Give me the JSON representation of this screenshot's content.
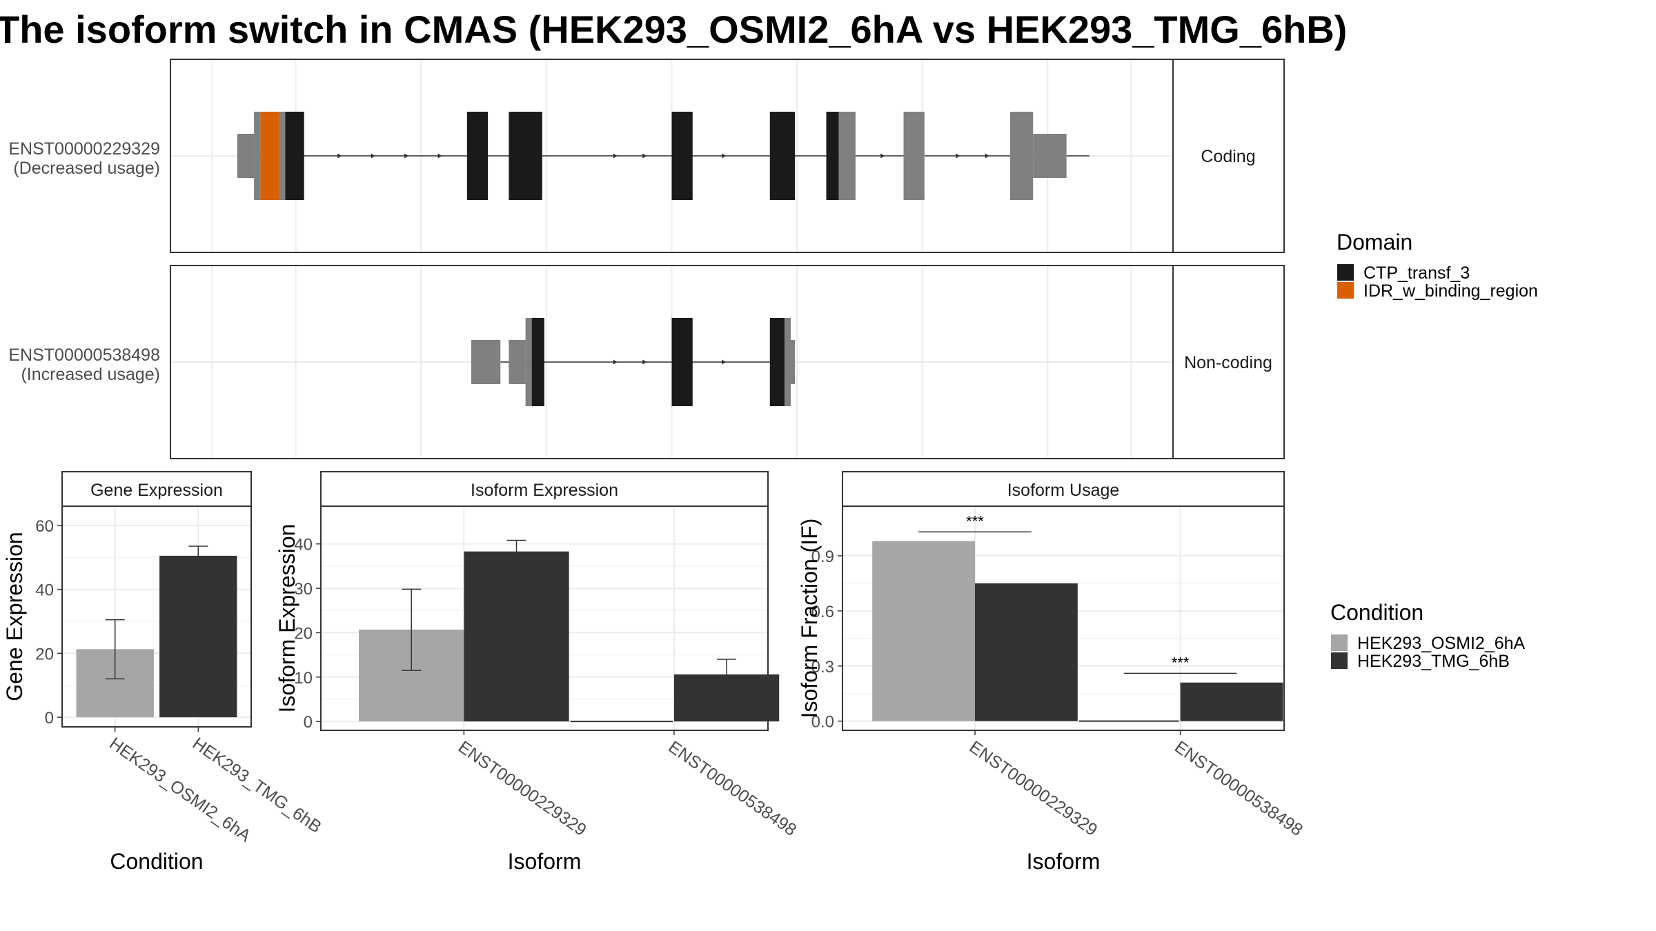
{
  "title": "The isoform switch in CMAS (HEK293_OSMI2_6hA vs HEK293_TMG_6hB)",
  "colors": {
    "domain_CTP_transf_3": "#1a1a1a",
    "domain_IDR_w_binding_region": "#d95f02",
    "utr": "#808080",
    "condition_HEK293_OSMI2_6hA": "#a6a6a6",
    "condition_HEK293_TMG_6hB": "#333333",
    "grid": "#ebebeb",
    "strip_bg": "#ffffff"
  },
  "transcripts": [
    {
      "id": "ENST00000229329",
      "usage": "(Decreased usage)",
      "strip": "Coding",
      "intron_range": [
        0.0,
        20.0
      ],
      "direction_arrows": [
        2.1,
        2.9,
        3.7,
        4.5,
        8.7,
        9.4,
        10.2,
        11.3,
        15.1,
        15.7,
        16.9,
        17.6
      ],
      "blocks": [
        {
          "start": -0.4,
          "end": 0.0,
          "part": "utr",
          "height": "half"
        },
        {
          "start": 0.0,
          "end": 0.15,
          "part": "utr",
          "height": "full"
        },
        {
          "start": 0.15,
          "end": 0.6,
          "part": "IDR_w_binding_region",
          "height": "full"
        },
        {
          "start": 0.6,
          "end": 0.75,
          "part": "utr",
          "height": "full"
        },
        {
          "start": 0.75,
          "end": 1.2,
          "part": "CTP_transf_3",
          "height": "full"
        },
        {
          "start": 5.1,
          "end": 5.6,
          "part": "CTP_transf_3",
          "height": "full"
        },
        {
          "start": 6.1,
          "end": 6.9,
          "part": "CTP_transf_3",
          "height": "full"
        },
        {
          "start": 10.0,
          "end": 10.5,
          "part": "CTP_transf_3",
          "height": "full"
        },
        {
          "start": 12.35,
          "end": 12.95,
          "part": "CTP_transf_3",
          "height": "full"
        },
        {
          "start": 13.7,
          "end": 14.0,
          "part": "CTP_transf_3",
          "height": "full"
        },
        {
          "start": 14.0,
          "end": 14.4,
          "part": "utr",
          "height": "full"
        },
        {
          "start": 15.55,
          "end": 16.05,
          "part": "utr",
          "height": "full"
        },
        {
          "start": 18.1,
          "end": 18.65,
          "part": "utr",
          "height": "full"
        },
        {
          "start": 18.65,
          "end": 19.45,
          "part": "utr",
          "height": "half"
        }
      ]
    },
    {
      "id": "ENST00000538498",
      "usage": "(Increased usage)",
      "strip": "Non-coding",
      "intron_range": [
        5.9,
        12.5
      ],
      "direction_arrows": [
        8.7,
        9.4,
        10.2,
        11.3
      ],
      "blocks": [
        {
          "start": 5.2,
          "end": 5.9,
          "part": "utr",
          "height": "half"
        },
        {
          "start": 6.1,
          "end": 6.5,
          "part": "utr",
          "height": "half"
        },
        {
          "start": 6.5,
          "end": 6.65,
          "part": "utr",
          "height": "full"
        },
        {
          "start": 6.65,
          "end": 6.95,
          "part": "CTP_transf_3",
          "height": "full"
        },
        {
          "start": 10.0,
          "end": 10.5,
          "part": "CTP_transf_3",
          "height": "full"
        },
        {
          "start": 12.35,
          "end": 12.7,
          "part": "CTP_transf_3",
          "height": "full"
        },
        {
          "start": 12.7,
          "end": 12.85,
          "part": "utr",
          "height": "full"
        },
        {
          "start": 12.85,
          "end": 12.95,
          "part": "utr",
          "height": "half"
        }
      ]
    }
  ],
  "legends": {
    "domain": {
      "title": "Domain",
      "entries": [
        "CTP_transf_3",
        "IDR_w_binding_region"
      ]
    },
    "condition": {
      "title": "Condition",
      "entries": [
        "HEK293_OSMI2_6hA",
        "HEK293_TMG_6hB"
      ]
    }
  },
  "chart_data": [
    {
      "type": "bar",
      "title": "Gene Expression",
      "xlabel": "Condition",
      "ylabel": "Gene Expression",
      "ylim": [
        -3,
        66
      ],
      "yticks": [
        0,
        20,
        40,
        60
      ],
      "categories": [
        "HEK293_OSMI2_6hA",
        "HEK293_TMG_6hB"
      ],
      "values": [
        21.3,
        50.5
      ],
      "error": [
        [
          12.0,
          30.5
        ],
        [
          47.5,
          53.5
        ]
      ],
      "bar_colors": [
        "#a6a6a6",
        "#333333"
      ]
    },
    {
      "type": "bar",
      "title": "Isoform Expression",
      "xlabel": "Isoform",
      "ylabel": "Isoform Expression",
      "ylim": [
        -2,
        48.5
      ],
      "yticks": [
        0,
        10,
        20,
        30,
        40
      ],
      "categories": [
        "ENST00000229329",
        "ENST00000538498"
      ],
      "series": [
        {
          "name": "HEK293_OSMI2_6hA",
          "values": [
            20.7,
            0.0
          ],
          "error": [
            [
              11.5,
              29.8
            ],
            [
              0.0,
              0.0
            ]
          ]
        },
        {
          "name": "HEK293_TMG_6hB",
          "values": [
            38.3,
            10.6
          ],
          "error": [
            [
              35.8,
              40.8
            ],
            [
              7.3,
              14.0
            ]
          ]
        }
      ]
    },
    {
      "type": "bar",
      "title": "Isoform Usage",
      "xlabel": "Isoform",
      "ylabel": "Isoform Fraction (IF)",
      "ylim": [
        -0.05,
        1.17
      ],
      "yticks": [
        0.0,
        0.3,
        0.6,
        0.9
      ],
      "tick_labels": [
        "0.0",
        "0.3",
        "0.6",
        "0.9"
      ],
      "categories": [
        "ENST00000229329",
        "ENST00000538498"
      ],
      "series": [
        {
          "name": "HEK293_OSMI2_6hA",
          "values": [
            0.98,
            0.0
          ]
        },
        {
          "name": "HEK293_TMG_6hB",
          "values": [
            0.75,
            0.21
          ]
        }
      ],
      "annotations": [
        {
          "category": "ENST00000229329",
          "label": "***",
          "y": 1.03
        },
        {
          "category": "ENST00000538498",
          "label": "***",
          "y": 0.26
        }
      ]
    }
  ]
}
